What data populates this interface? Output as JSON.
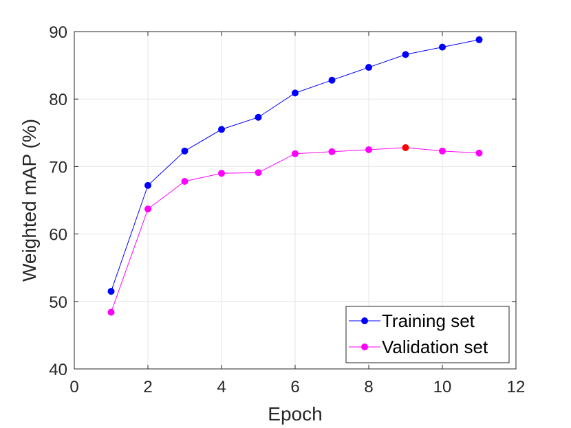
{
  "chart_data": {
    "type": "line",
    "title": "",
    "xlabel": "Epoch",
    "ylabel": "Weighted mAP (%)",
    "xlim": [
      0,
      12
    ],
    "ylim": [
      40,
      90
    ],
    "xticks": [
      0,
      2,
      4,
      6,
      8,
      10,
      12
    ],
    "yticks": [
      40,
      50,
      60,
      70,
      80,
      90
    ],
    "xtick_labels": [
      "0",
      "2",
      "4",
      "6",
      "8",
      "10",
      "12"
    ],
    "ytick_labels": [
      "40",
      "50",
      "60",
      "70",
      "80",
      "90"
    ],
    "grid": true,
    "legend_position": "bottom-right",
    "series": [
      {
        "name": "Training set",
        "color": "#0000ff",
        "x": [
          1,
          2,
          3,
          4,
          5,
          6,
          7,
          8,
          9,
          10,
          11
        ],
        "y": [
          51.5,
          67.2,
          72.3,
          75.5,
          77.3,
          80.9,
          82.8,
          84.7,
          86.6,
          87.7,
          88.8
        ]
      },
      {
        "name": "Validation set",
        "color": "#ff00ff",
        "x": [
          1,
          2,
          3,
          4,
          5,
          6,
          7,
          8,
          9,
          10,
          11
        ],
        "y": [
          48.4,
          63.7,
          67.8,
          69.0,
          69.1,
          71.9,
          72.2,
          72.5,
          72.8,
          72.3,
          72.0
        ],
        "highlight": {
          "x": 9,
          "y": 72.8,
          "color": "#ff0000"
        }
      }
    ]
  }
}
